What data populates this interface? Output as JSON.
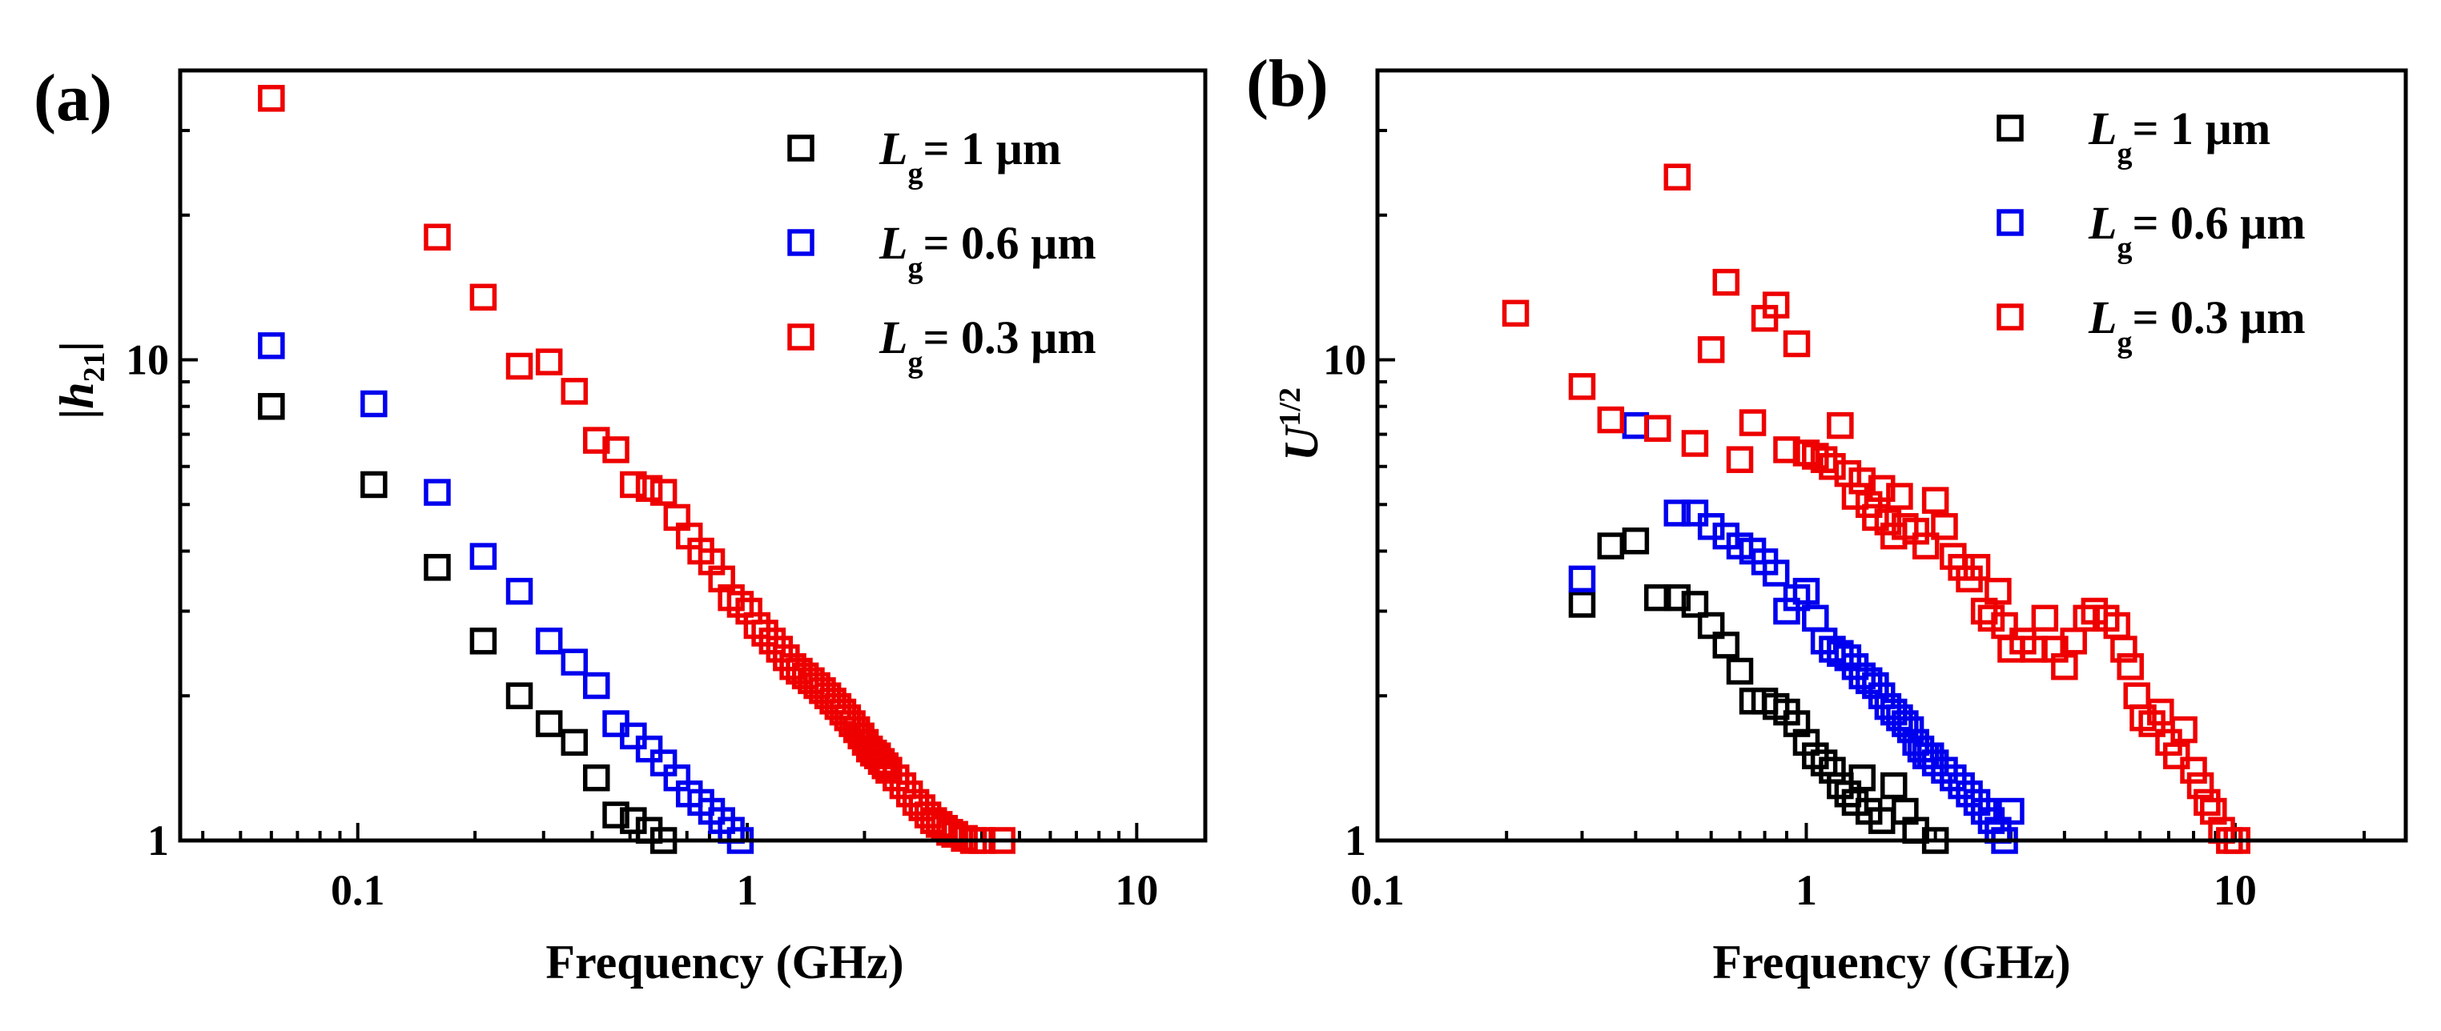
{
  "chart_data": [
    {
      "type": "scatter",
      "panel_label": "(a)",
      "xlabel": "Frequency (GHz)",
      "ylabel": {
        "prefix": "|",
        "var": "h",
        "sub": "21",
        "suffix": "|"
      },
      "xscale": "log",
      "yscale": "log",
      "xlim": [
        0.035,
        15
      ],
      "ylim": [
        1,
        40
      ],
      "xticks": [
        {
          "value": 0.1,
          "label": "0.1"
        },
        {
          "value": 1,
          "label": "1"
        },
        {
          "value": 10,
          "label": "10"
        }
      ],
      "yticks": [
        {
          "value": 1,
          "label": "1"
        },
        {
          "value": 10,
          "label": "10"
        }
      ],
      "legend_position": "top-right",
      "series": [
        {
          "name": "L_g = 1 µm",
          "label": {
            "var": "L",
            "sub": "g",
            "rest": "= 1 µm"
          },
          "color": "#000000",
          "points": [
            [
              0.06,
              8.0
            ],
            [
              0.11,
              5.5
            ],
            [
              0.16,
              3.7
            ],
            [
              0.21,
              2.6
            ],
            [
              0.26,
              2.0
            ],
            [
              0.31,
              1.75
            ],
            [
              0.36,
              1.6
            ],
            [
              0.41,
              1.35
            ],
            [
              0.46,
              1.13
            ],
            [
              0.51,
              1.1
            ],
            [
              0.56,
              1.05
            ],
            [
              0.61,
              1.0
            ]
          ]
        },
        {
          "name": "L_g = 0.6 µm",
          "label": {
            "var": "L",
            "sub": "g",
            "rest": "= 0.6 µm"
          },
          "color": "#0000ee",
          "points": [
            [
              0.06,
              10.7
            ],
            [
              0.11,
              8.1
            ],
            [
              0.16,
              5.3
            ],
            [
              0.21,
              3.9
            ],
            [
              0.26,
              3.3
            ],
            [
              0.31,
              2.6
            ],
            [
              0.36,
              2.35
            ],
            [
              0.41,
              2.1
            ],
            [
              0.46,
              1.75
            ],
            [
              0.51,
              1.65
            ],
            [
              0.56,
              1.55
            ],
            [
              0.61,
              1.45
            ],
            [
              0.66,
              1.35
            ],
            [
              0.71,
              1.25
            ],
            [
              0.76,
              1.2
            ],
            [
              0.81,
              1.15
            ],
            [
              0.86,
              1.1
            ],
            [
              0.91,
              1.05
            ],
            [
              0.96,
              1.0
            ]
          ]
        },
        {
          "name": "L_g = 0.3 µm",
          "label": {
            "var": "L",
            "sub": "g",
            "rest": "= 0.3 µm"
          },
          "color": "#ee0000",
          "points": [
            [
              0.06,
              35.0
            ],
            [
              0.16,
              18.0
            ],
            [
              0.21,
              13.5
            ],
            [
              0.26,
              9.7
            ],
            [
              0.31,
              9.9
            ],
            [
              0.36,
              8.6
            ],
            [
              0.41,
              6.8
            ],
            [
              0.46,
              6.5
            ],
            [
              0.51,
              5.5
            ],
            [
              0.56,
              5.4
            ],
            [
              0.61,
              5.3
            ],
            [
              0.66,
              4.7
            ],
            [
              0.71,
              4.3
            ],
            [
              0.76,
              4.0
            ],
            [
              0.81,
              3.8
            ],
            [
              0.86,
              3.5
            ],
            [
              0.91,
              3.2
            ],
            [
              0.96,
              3.1
            ],
            [
              1.01,
              3.0
            ],
            [
              1.06,
              2.8
            ],
            [
              1.11,
              2.7
            ],
            [
              1.16,
              2.6
            ],
            [
              1.21,
              2.5
            ],
            [
              1.26,
              2.4
            ],
            [
              1.31,
              2.3
            ],
            [
              1.36,
              2.25
            ],
            [
              1.41,
              2.2
            ],
            [
              1.46,
              2.15
            ],
            [
              1.51,
              2.1
            ],
            [
              1.56,
              2.05
            ],
            [
              1.61,
              2.0
            ],
            [
              1.66,
              1.95
            ],
            [
              1.71,
              1.9
            ],
            [
              1.76,
              1.85
            ],
            [
              1.81,
              1.8
            ],
            [
              1.86,
              1.75
            ],
            [
              1.91,
              1.7
            ],
            [
              1.96,
              1.65
            ],
            [
              2.01,
              1.6
            ],
            [
              2.06,
              1.55
            ],
            [
              2.11,
              1.52
            ],
            [
              2.16,
              1.5
            ],
            [
              2.21,
              1.46
            ],
            [
              2.26,
              1.43
            ],
            [
              2.31,
              1.4
            ],
            [
              2.41,
              1.35
            ],
            [
              2.51,
              1.3
            ],
            [
              2.61,
              1.25
            ],
            [
              2.71,
              1.2
            ],
            [
              2.81,
              1.17
            ],
            [
              2.91,
              1.13
            ],
            [
              3.01,
              1.1
            ],
            [
              3.11,
              1.08
            ],
            [
              3.21,
              1.06
            ],
            [
              3.31,
              1.04
            ],
            [
              3.41,
              1.03
            ],
            [
              3.61,
              1.01
            ],
            [
              3.81,
              1.0
            ],
            [
              4.01,
              1.0
            ],
            [
              4.51,
              1.0
            ]
          ]
        }
      ]
    },
    {
      "type": "scatter",
      "panel_label": "(b)",
      "xlabel": "Frequency (GHz)",
      "ylabel": {
        "var": "U",
        "sup": "1/2"
      },
      "xscale": "log",
      "yscale": "log",
      "xlim": [
        0.1,
        25
      ],
      "ylim": [
        1,
        40
      ],
      "xticks": [
        {
          "value": 0.1,
          "label": "0.1"
        },
        {
          "value": 1,
          "label": "1"
        },
        {
          "value": 10,
          "label": "10"
        }
      ],
      "yticks": [
        {
          "value": 1,
          "label": "1"
        },
        {
          "value": 10,
          "label": "10"
        }
      ],
      "legend_position": "top-right",
      "series": [
        {
          "name": "L_g = 1 µm",
          "label": {
            "var": "L",
            "sub": "g",
            "rest": "= 1 µm"
          },
          "color": "#000000",
          "points": [
            [
              0.3,
              3.1
            ],
            [
              0.35,
              4.1
            ],
            [
              0.4,
              4.2
            ],
            [
              0.45,
              3.2
            ],
            [
              0.5,
              3.2
            ],
            [
              0.55,
              3.1
            ],
            [
              0.6,
              2.8
            ],
            [
              0.65,
              2.55
            ],
            [
              0.7,
              2.25
            ],
            [
              0.75,
              1.95
            ],
            [
              0.8,
              1.95
            ],
            [
              0.85,
              1.9
            ],
            [
              0.9,
              1.85
            ],
            [
              0.95,
              1.75
            ],
            [
              1.0,
              1.6
            ],
            [
              1.05,
              1.5
            ],
            [
              1.1,
              1.45
            ],
            [
              1.15,
              1.4
            ],
            [
              1.2,
              1.3
            ],
            [
              1.25,
              1.25
            ],
            [
              1.3,
              1.2
            ],
            [
              1.35,
              1.35
            ],
            [
              1.4,
              1.15
            ],
            [
              1.5,
              1.1
            ],
            [
              1.6,
              1.3
            ],
            [
              1.7,
              1.15
            ],
            [
              1.8,
              1.05
            ],
            [
              2.0,
              1.0
            ]
          ]
        },
        {
          "name": "L_g = 0.6 µm",
          "label": {
            "var": "L",
            "sub": "g",
            "rest": "= 0.6 µm"
          },
          "color": "#0000ee",
          "points": [
            [
              0.3,
              3.5
            ],
            [
              0.4,
              7.3
            ],
            [
              0.5,
              4.8
            ],
            [
              0.55,
              4.8
            ],
            [
              0.6,
              4.5
            ],
            [
              0.65,
              4.3
            ],
            [
              0.7,
              4.1
            ],
            [
              0.75,
              4.0
            ],
            [
              0.8,
              3.8
            ],
            [
              0.85,
              3.6
            ],
            [
              0.9,
              3.0
            ],
            [
              0.95,
              3.2
            ],
            [
              1.0,
              3.3
            ],
            [
              1.05,
              2.9
            ],
            [
              1.1,
              2.6
            ],
            [
              1.15,
              2.5
            ],
            [
              1.2,
              2.45
            ],
            [
              1.25,
              2.4
            ],
            [
              1.3,
              2.3
            ],
            [
              1.35,
              2.2
            ],
            [
              1.4,
              2.15
            ],
            [
              1.45,
              2.1
            ],
            [
              1.5,
              2.0
            ],
            [
              1.55,
              1.9
            ],
            [
              1.6,
              1.85
            ],
            [
              1.65,
              1.8
            ],
            [
              1.7,
              1.75
            ],
            [
              1.75,
              1.7
            ],
            [
              1.8,
              1.6
            ],
            [
              1.85,
              1.55
            ],
            [
              1.9,
              1.5
            ],
            [
              1.95,
              1.5
            ],
            [
              2.0,
              1.45
            ],
            [
              2.1,
              1.4
            ],
            [
              2.2,
              1.35
            ],
            [
              2.3,
              1.3
            ],
            [
              2.4,
              1.25
            ],
            [
              2.5,
              1.2
            ],
            [
              2.6,
              1.15
            ],
            [
              2.7,
              1.1
            ],
            [
              2.8,
              1.05
            ],
            [
              3.0,
              1.15
            ],
            [
              2.9,
              1.0
            ]
          ]
        },
        {
          "name": "L_g = 0.3 µm",
          "label": {
            "var": "L",
            "sub": "g",
            "rest": "= 0.3 µm"
          },
          "color": "#ee0000",
          "points": [
            [
              0.21,
              12.5
            ],
            [
              0.3,
              8.8
            ],
            [
              0.35,
              7.5
            ],
            [
              0.45,
              7.2
            ],
            [
              0.5,
              24.0
            ],
            [
              0.55,
              6.7
            ],
            [
              0.6,
              10.5
            ],
            [
              0.65,
              14.5
            ],
            [
              0.7,
              6.2
            ],
            [
              0.75,
              7.4
            ],
            [
              0.8,
              12.2
            ],
            [
              0.85,
              13.0
            ],
            [
              0.9,
              6.5
            ],
            [
              0.95,
              10.8
            ],
            [
              1.0,
              6.4
            ],
            [
              1.05,
              6.3
            ],
            [
              1.1,
              6.2
            ],
            [
              1.15,
              6.0
            ],
            [
              1.2,
              7.3
            ],
            [
              1.25,
              5.8
            ],
            [
              1.3,
              5.2
            ],
            [
              1.35,
              5.6
            ],
            [
              1.4,
              5.0
            ],
            [
              1.45,
              4.7
            ],
            [
              1.5,
              5.4
            ],
            [
              1.55,
              4.6
            ],
            [
              1.6,
              4.3
            ],
            [
              1.65,
              5.2
            ],
            [
              1.7,
              4.5
            ],
            [
              1.8,
              4.4
            ],
            [
              1.9,
              4.1
            ],
            [
              2.0,
              5.1
            ],
            [
              2.1,
              4.5
            ],
            [
              2.2,
              3.9
            ],
            [
              2.3,
              3.7
            ],
            [
              2.4,
              3.5
            ],
            [
              2.5,
              3.7
            ],
            [
              2.6,
              3.0
            ],
            [
              2.7,
              2.9
            ],
            [
              2.8,
              3.3
            ],
            [
              2.9,
              2.8
            ],
            [
              3.0,
              2.5
            ],
            [
              3.2,
              2.6
            ],
            [
              3.4,
              2.5
            ],
            [
              3.6,
              2.9
            ],
            [
              3.8,
              2.5
            ],
            [
              4.0,
              2.3
            ],
            [
              4.2,
              2.6
            ],
            [
              4.5,
              2.9
            ],
            [
              4.7,
              3.0
            ],
            [
              5.0,
              2.9
            ],
            [
              5.3,
              2.8
            ],
            [
              5.5,
              2.5
            ],
            [
              5.7,
              2.3
            ],
            [
              5.9,
              2.0
            ],
            [
              6.1,
              1.8
            ],
            [
              6.4,
              1.75
            ],
            [
              6.7,
              1.85
            ],
            [
              7.0,
              1.6
            ],
            [
              7.3,
              1.5
            ],
            [
              7.6,
              1.7
            ],
            [
              8.0,
              1.4
            ],
            [
              8.3,
              1.3
            ],
            [
              8.6,
              1.2
            ],
            [
              8.9,
              1.15
            ],
            [
              9.3,
              1.05
            ],
            [
              9.7,
              1.0
            ],
            [
              10.1,
              1.0
            ]
          ]
        }
      ]
    }
  ]
}
